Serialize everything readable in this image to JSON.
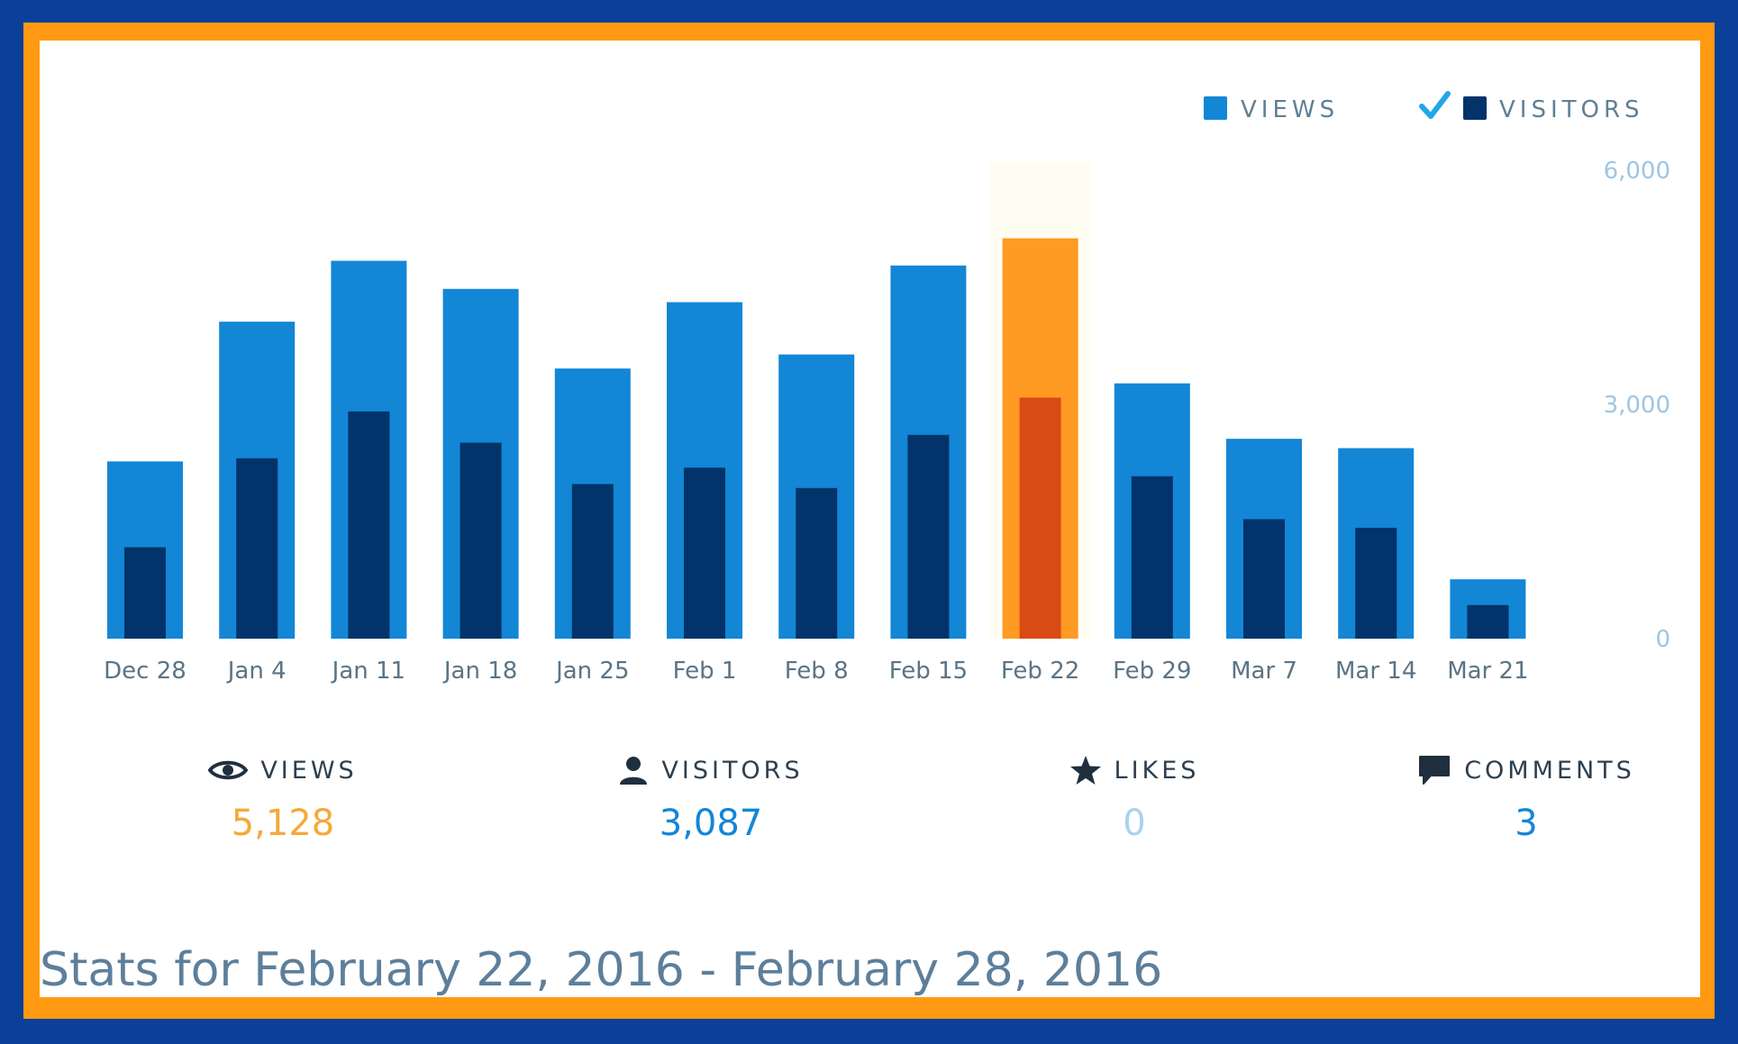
{
  "legend": {
    "views_label": "VIEWS",
    "visitors_label": "VISITORS",
    "visitors_checked": true
  },
  "colors": {
    "views": "#1386d6",
    "visitors": "#02336a",
    "views_highlight": "#ff9a23",
    "visitors_highlight": "#da4a14",
    "check": "#23a6e8",
    "views_value": "#f4a93a",
    "visitors_value": "#1386d6",
    "likes_value": "#a8d3ee",
    "comments_value": "#1386d6"
  },
  "chart_data": {
    "type": "bar",
    "categories": [
      "Dec 28",
      "Jan 4",
      "Jan 11",
      "Jan 18",
      "Jan 25",
      "Feb 1",
      "Feb 8",
      "Feb 15",
      "Feb 22",
      "Feb 29",
      "Mar 7",
      "Mar 14",
      "Mar 21"
    ],
    "series": [
      {
        "name": "VIEWS",
        "values": [
          2270,
          4060,
          4840,
          4480,
          3460,
          4310,
          3640,
          4780,
          5128,
          3270,
          2560,
          2440,
          760
        ]
      },
      {
        "name": "VISITORS",
        "values": [
          1170,
          2310,
          2910,
          2510,
          1980,
          2190,
          1930,
          2610,
          3087,
          2080,
          1530,
          1420,
          430
        ]
      }
    ],
    "highlight_index": 8,
    "y_ticks": [
      "6,000",
      "3,000",
      "0"
    ],
    "ylim": [
      0,
      6000
    ],
    "legend_position": "top-right"
  },
  "stats": {
    "views": {
      "label": "VIEWS",
      "value": "5,128",
      "icon": "eye-icon"
    },
    "visitors": {
      "label": "VISITORS",
      "value": "3,087",
      "icon": "person-icon"
    },
    "likes": {
      "label": "LIKES",
      "value": "0",
      "icon": "star-icon"
    },
    "comments": {
      "label": "COMMENTS",
      "value": "3",
      "icon": "comment-icon"
    }
  },
  "footer": {
    "title": "Stats for February 22, 2016 - February 28, 2016"
  }
}
